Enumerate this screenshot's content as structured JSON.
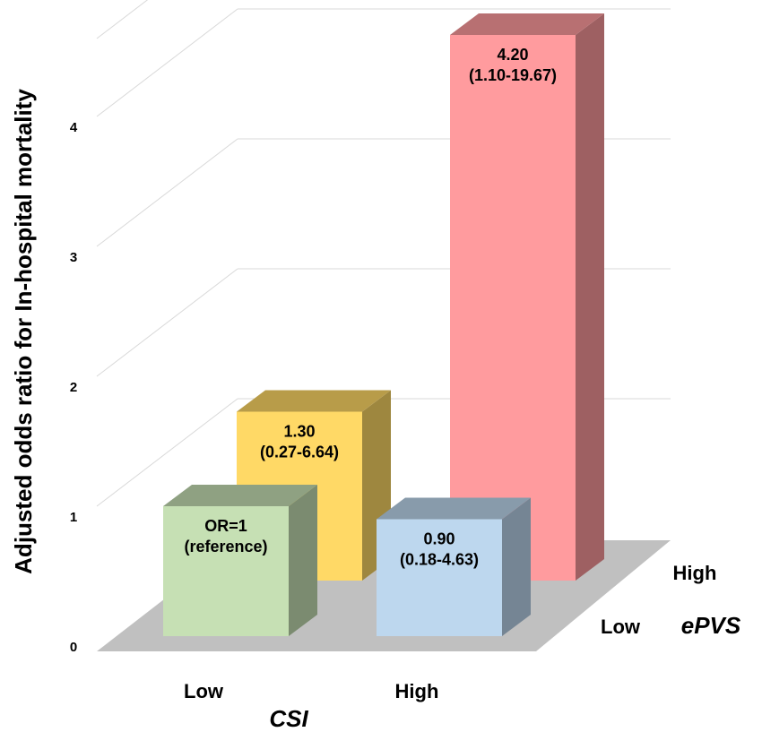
{
  "chart_data": {
    "type": "bar",
    "title": "",
    "ylabel": "Adjusted odds ratio for In-hospital mortality",
    "ylim": [
      0,
      4.5
    ],
    "yticks": [
      "0",
      "1",
      "2",
      "3",
      "4"
    ],
    "x_axis": {
      "title": "CSI",
      "categories": [
        "Low",
        "High"
      ]
    },
    "depth_axis": {
      "title": "ePVS",
      "categories": [
        "Low",
        "High"
      ]
    },
    "bars": [
      {
        "csi": "Low",
        "epvs": "Low",
        "value": 1.0,
        "label": [
          "OR=1",
          "(reference)"
        ],
        "color": "#c6e0b4"
      },
      {
        "csi": "Low",
        "epvs": "High",
        "value": 1.3,
        "label": [
          "1.30",
          "(0.27-6.64)"
        ],
        "color": "#ffd966"
      },
      {
        "csi": "High",
        "epvs": "Low",
        "value": 0.9,
        "label": [
          "0.90",
          "(0.18-4.63)"
        ],
        "color": "#bdd7ee"
      },
      {
        "csi": "High",
        "epvs": "High",
        "value": 4.2,
        "label": [
          "4.20",
          "(1.10-19.67)"
        ],
        "color": "#ff9b9e"
      }
    ],
    "grid": true,
    "floor_color": "#c0c0c0"
  }
}
